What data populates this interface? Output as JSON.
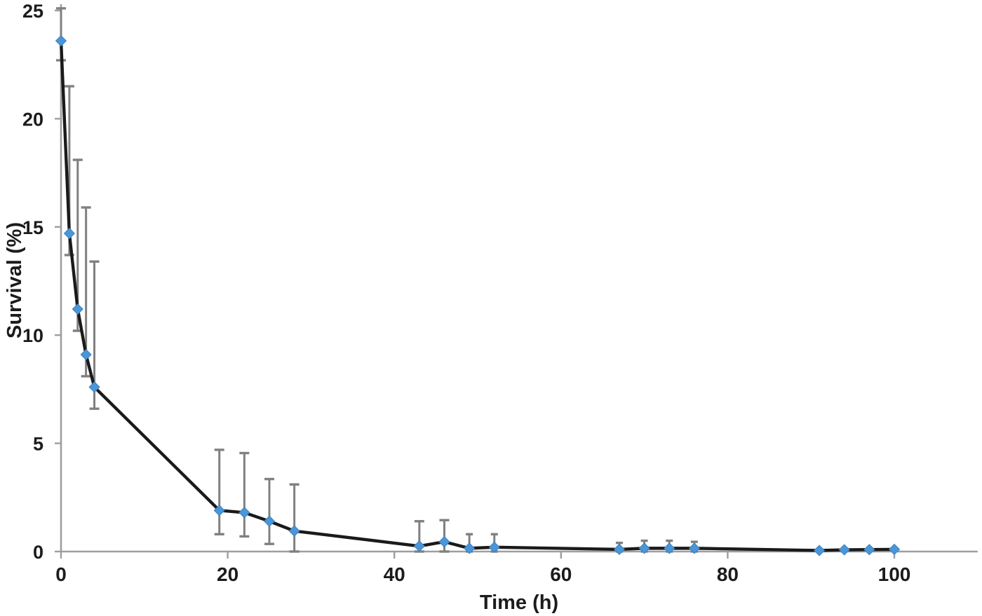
{
  "figure": {
    "background": "#ffffff"
  },
  "chart_data": {
    "type": "line",
    "title": "",
    "xlabel": "Time (h)",
    "ylabel": "Survival (%)",
    "xlim": [
      0,
      110
    ],
    "ylim": [
      0,
      25
    ],
    "x_ticks": [
      0,
      20,
      40,
      60,
      80,
      100
    ],
    "y_ticks": [
      0,
      5,
      10,
      15,
      20,
      25
    ],
    "grid": false,
    "legend": "none",
    "marker": "diamond",
    "error_bars": "vertical, gray, capped; lower whiskers clipped at 0",
    "series": [
      {
        "name": "Survival",
        "x": [
          0,
          1,
          2,
          3,
          4,
          19,
          22,
          25,
          28,
          43,
          46,
          49,
          52,
          67,
          70,
          73,
          76,
          91,
          94,
          97,
          100
        ],
        "y": [
          23.6,
          14.7,
          11.2,
          9.1,
          7.6,
          1.9,
          1.8,
          1.4,
          0.95,
          0.25,
          0.45,
          0.15,
          0.2,
          0.1,
          0.15,
          0.15,
          0.15,
          0.05,
          0.08,
          0.09,
          0.1
        ],
        "error_high": [
          25.1,
          21.5,
          18.1,
          15.9,
          13.4,
          4.7,
          4.55,
          3.35,
          3.1,
          1.4,
          1.45,
          0.8,
          0.8,
          0.4,
          0.5,
          0.5,
          0.45,
          null,
          null,
          null,
          null
        ],
        "error_low": [
          22.7,
          13.7,
          10.2,
          8.1,
          6.6,
          0.8,
          0.7,
          0.35,
          0,
          0,
          0,
          0,
          0,
          0,
          0,
          0,
          0,
          null,
          null,
          null,
          null
        ]
      }
    ],
    "colors": {
      "data_line": "#1a1a1a",
      "marker_fill": "#4a96d8",
      "marker_edge": "#3b80bd",
      "error_bar": "#808080",
      "axis_line": "#9e9e9e",
      "text": "#1c1c1c",
      "background": "#ffffff"
    }
  }
}
